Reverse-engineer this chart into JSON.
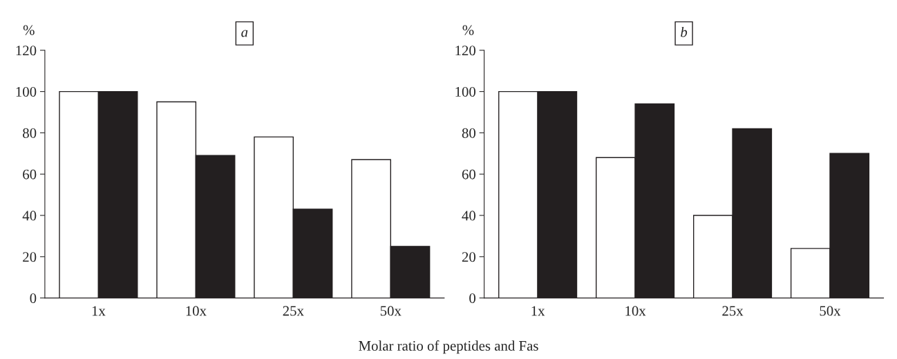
{
  "chart_data": [
    {
      "type": "bar",
      "title": "a",
      "ylabel": "%",
      "categories": [
        "1x",
        "10x",
        "25x",
        "50x"
      ],
      "ylim": [
        0,
        120
      ],
      "yticks": [
        0,
        20,
        40,
        60,
        80,
        100,
        120
      ],
      "grid": false,
      "legend": false,
      "annotations": [
        "Molar ratio of peptides and Fas"
      ],
      "series": [
        {
          "color": "#ffffff",
          "values": [
            100,
            95,
            78,
            67
          ]
        },
        {
          "color": "#231f20",
          "values": [
            100,
            69,
            43,
            25
          ]
        }
      ]
    },
    {
      "type": "bar",
      "title": "b",
      "ylabel": "%",
      "categories": [
        "1x",
        "10x",
        "25x",
        "50x"
      ],
      "ylim": [
        0,
        120
      ],
      "yticks": [
        0,
        20,
        40,
        60,
        80,
        100,
        120
      ],
      "grid": false,
      "legend": false,
      "series": [
        {
          "color": "#ffffff",
          "values": [
            100,
            68,
            40,
            24
          ]
        },
        {
          "color": "#231f20",
          "values": [
            100,
            94,
            82,
            70
          ]
        }
      ]
    }
  ]
}
